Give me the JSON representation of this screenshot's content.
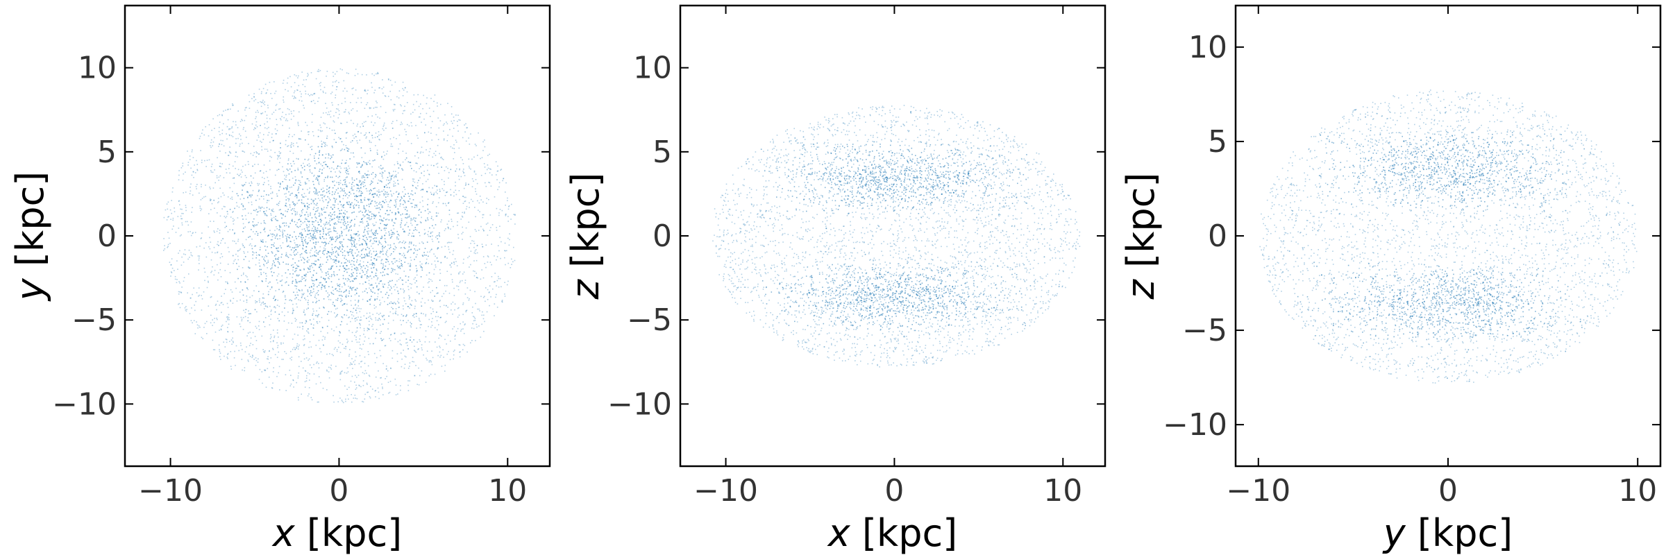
{
  "chart_data": [
    {
      "type": "scatter",
      "title": "",
      "xlabel": "x [kpc]",
      "xlabel_var": "x",
      "xlabel_unit": " [kpc]",
      "ylabel": "y [kpc]",
      "ylabel_var": "y",
      "ylabel_unit": " [kpc]",
      "xlim": [
        -12.7,
        12.5
      ],
      "ylim": [
        -13.7,
        13.7
      ],
      "xticks": [
        -10,
        0,
        10
      ],
      "xtick_labels": [
        "−10",
        "0",
        "10"
      ],
      "yticks": [
        -10,
        -5,
        0,
        5,
        10
      ],
      "ytick_labels": [
        "−10",
        "−5",
        "0",
        "5",
        "10"
      ],
      "grid": false,
      "legend": false,
      "color": "#1f77b4",
      "distribution": {
        "shape": "roughly circular cloud of orbit points",
        "center": [
          0,
          0
        ],
        "half_extent": [
          10.5,
          10
        ],
        "core_half_extent": [
          5,
          4.5
        ]
      }
    },
    {
      "type": "scatter",
      "title": "",
      "xlabel": "x [kpc]",
      "xlabel_var": "x",
      "xlabel_unit": " [kpc]",
      "ylabel": "z [kpc]",
      "ylabel_var": "z",
      "ylabel_unit": " [kpc]",
      "xlim": [
        -12.7,
        12.5
      ],
      "ylim": [
        -13.7,
        13.7
      ],
      "xticks": [
        -10,
        0,
        10
      ],
      "xtick_labels": [
        "−10",
        "0",
        "10"
      ],
      "yticks": [
        -10,
        -5,
        0,
        5,
        10
      ],
      "ytick_labels": [
        "−10",
        "−5",
        "0",
        "5",
        "10"
      ],
      "grid": false,
      "legend": false,
      "color": "#1f77b4",
      "distribution": {
        "shape": "barrel-shaped cloud with dense lobes near z = ±3.5 kpc",
        "center": [
          0,
          0
        ],
        "half_extent": [
          11,
          7.8
        ],
        "lobe_centers_z": [
          3.5,
          -3.5
        ]
      }
    },
    {
      "type": "scatter",
      "title": "",
      "xlabel": "y [kpc]",
      "xlabel_var": "y",
      "xlabel_unit": " [kpc]",
      "ylabel": "z [kpc]",
      "ylabel_var": "z",
      "ylabel_unit": " [kpc]",
      "xlim": [
        -11.2,
        11.2
      ],
      "ylim": [
        -12.2,
        12.2
      ],
      "xticks": [
        -10,
        0,
        10
      ],
      "xtick_labels": [
        "−10",
        "0",
        "10"
      ],
      "yticks": [
        -10,
        -5,
        0,
        5,
        10
      ],
      "ytick_labels": [
        "−10",
        "−5",
        "0",
        "5",
        "10"
      ],
      "grid": false,
      "legend": false,
      "color": "#1f77b4",
      "distribution": {
        "shape": "barrel-shaped cloud with dense lobes near z = ±3.5 kpc",
        "center": [
          0,
          0
        ],
        "half_extent": [
          10,
          7.8
        ],
        "lobe_centers_z": [
          3.5,
          -3.5
        ]
      }
    }
  ]
}
